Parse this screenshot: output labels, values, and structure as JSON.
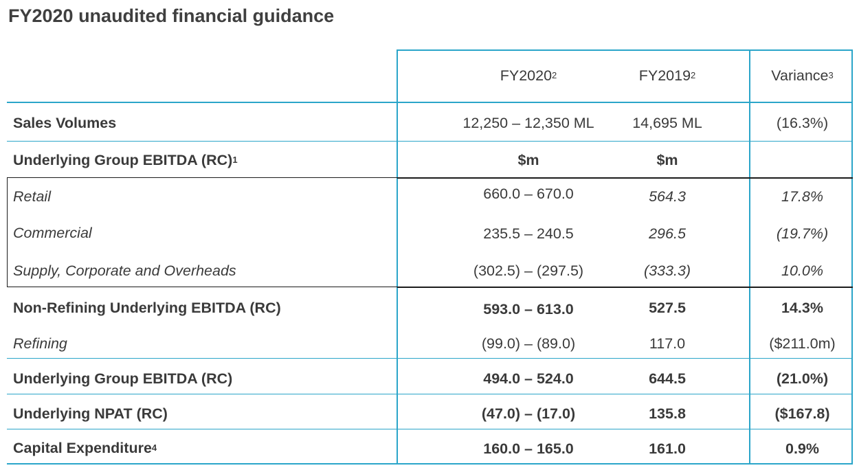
{
  "title": "FY2020 unaudited financial guidance",
  "header": {
    "fy2020": "FY2020",
    "fy2020_sup": "2",
    "fy2019": "FY2019",
    "fy2019_sup": "2",
    "variance": "Variance",
    "variance_sup": "3"
  },
  "rows": [
    {
      "label": "Sales Volumes",
      "label_sup": "",
      "fy2020": "12,250 – 12,350 ML",
      "fy2019": "14,695 ML",
      "variance": "(16.3%)"
    },
    {
      "label": "Underlying Group EBITDA (RC)",
      "label_sup": "1",
      "fy2020": "$m",
      "fy2019": "$m",
      "variance": ""
    },
    {
      "label": "Retail",
      "label_sup": "",
      "fy2020": "660.0 – 670.0",
      "fy2019": "564.3",
      "variance": "17.8%"
    },
    {
      "label": "Commercial",
      "label_sup": "",
      "fy2020": "235.5 – 240.5",
      "fy2019": "296.5",
      "variance": "(19.7%)"
    },
    {
      "label": "Supply, Corporate and Overheads",
      "label_sup": "",
      "fy2020": "(302.5) – (297.5)",
      "fy2019": "(333.3)",
      "variance": "10.0%"
    },
    {
      "label": "Non-Refining Underlying EBITDA (RC)",
      "label_sup": "",
      "fy2020": "593.0 – 613.0",
      "fy2019": "527.5",
      "variance": "14.3%"
    },
    {
      "label": "Refining",
      "label_sup": "",
      "fy2020": "(99.0) – (89.0)",
      "fy2019": "117.0",
      "variance": "($211.0m)"
    },
    {
      "label": "Underlying Group EBITDA (RC)",
      "label_sup": "",
      "fy2020": "494.0 – 524.0",
      "fy2019": "644.5",
      "variance": "(21.0%)"
    },
    {
      "label": "Underlying NPAT (RC)",
      "label_sup": "",
      "fy2020": "(47.0) – (17.0)",
      "fy2019": "135.8",
      "variance": "($167.8)"
    },
    {
      "label": "Capital Expenditure",
      "label_sup": "4",
      "fy2020": "160.0 – 165.0",
      "fy2019": "161.0",
      "variance": "0.9%"
    }
  ],
  "colors": {
    "border": "#2aa5c9",
    "text": "#3a3a3a",
    "box": "#1a1a1a"
  }
}
